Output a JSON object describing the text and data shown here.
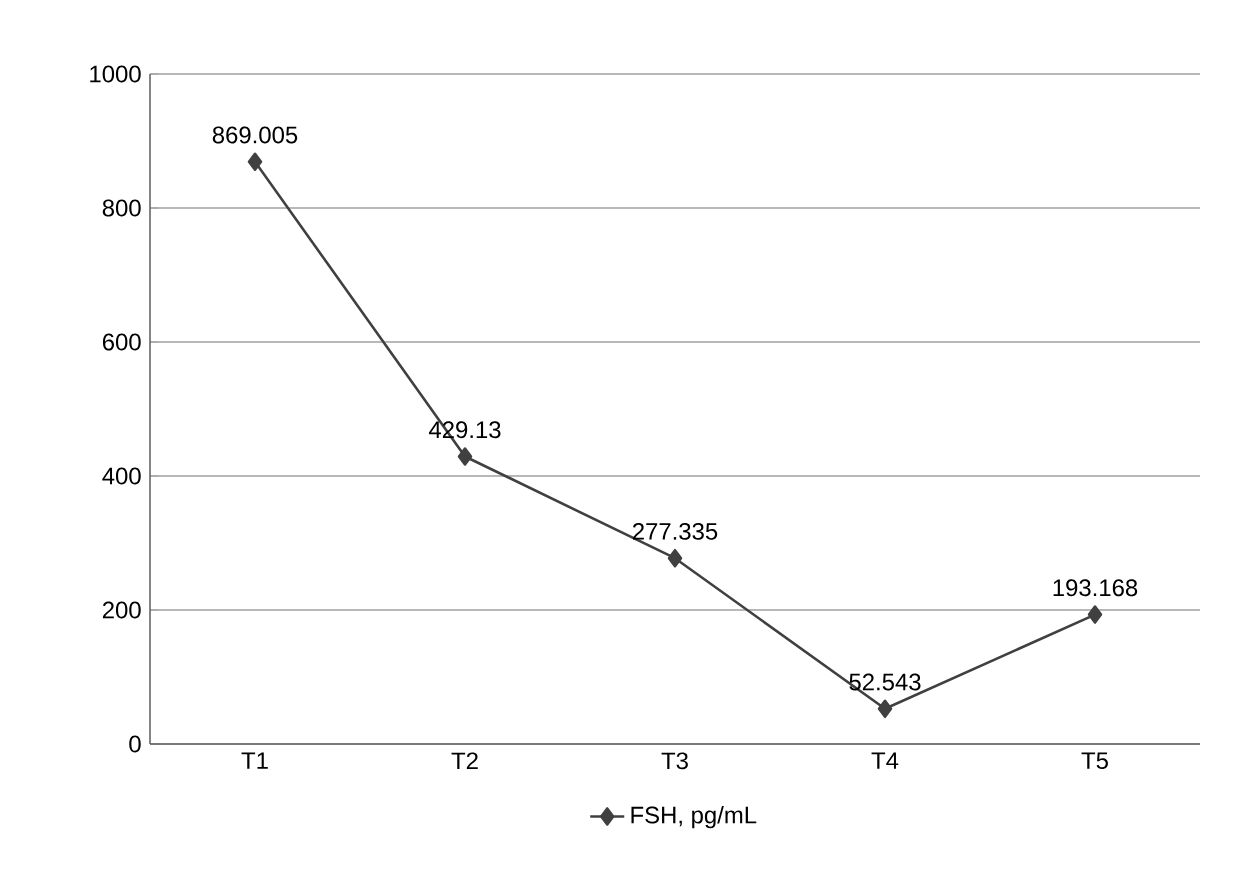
{
  "chart_data": {
    "type": "line",
    "categories": [
      "T1",
      "T2",
      "T3",
      "T4",
      "T5"
    ],
    "series": [
      {
        "name": "FSH, pg/mL",
        "color": "#404040",
        "values": [
          869.005,
          429.13,
          277.335,
          52.543,
          193.168
        ]
      }
    ],
    "ylim": [
      0,
      1000
    ],
    "yticks": [
      0,
      200,
      400,
      600,
      800,
      1000
    ],
    "grid": "y",
    "legend": "bottom",
    "marker": "diamond",
    "line_style": "solid",
    "data_labels": true
  }
}
